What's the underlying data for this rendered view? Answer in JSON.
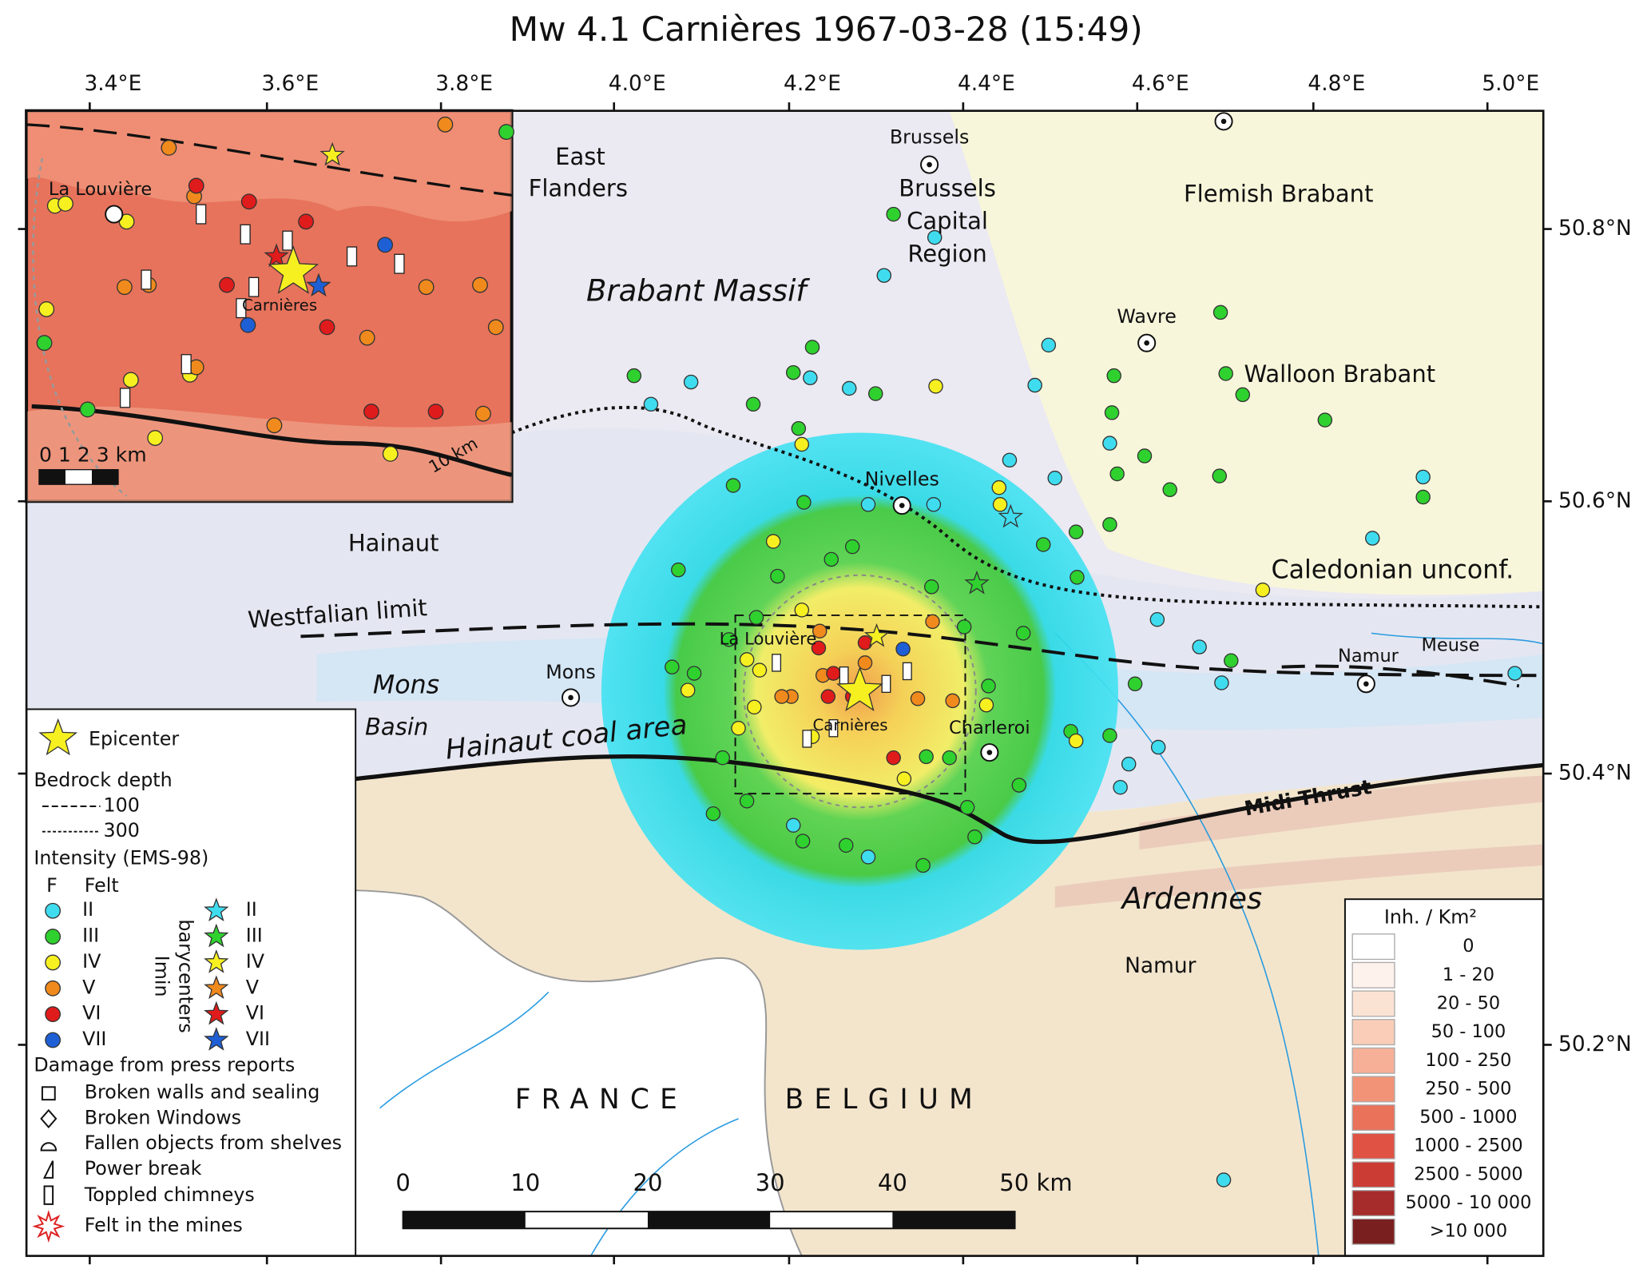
{
  "title": "Mw 4.1 Carnières 1967-03-28 (15:49)",
  "axes": {
    "longitude": [
      "3.4°E",
      "3.6°E",
      "3.8°E",
      "4.0°E",
      "4.2°E",
      "4.4°E",
      "4.6°E",
      "4.8°E",
      "5.0°E"
    ],
    "latitude": [
      "50.8°N",
      "50.6°N",
      "50.4°N",
      "50.2°N"
    ]
  },
  "places": {
    "brussels": "Brussels",
    "brussels_region": [
      "Brussels",
      "Capital",
      "Region"
    ],
    "east_flanders": [
      "East",
      "Flanders"
    ],
    "flemish_brabant": "Flemish Brabant",
    "wavre": "Wavre",
    "walloon_brabant": "Walloon Brabant",
    "nivelles": "Nivelles",
    "hainaut": "Hainaut",
    "mons": "Mons",
    "la_louviere": "La Louvière",
    "carnieres": "Carnières",
    "charleroi": "Charleroi",
    "namur_city": "Namur",
    "namur_province": "Namur",
    "meuse": "Meuse",
    "france": "FRANCE",
    "belgium": "BELGIUM"
  },
  "geology": {
    "brabant_massif": "Brabant Massif",
    "caledonian": "Caledonian unconf.",
    "westfalian": "Westfalian limit",
    "mons_basin": [
      "Mons",
      "Basin"
    ],
    "coal_area": "Hainaut coal area",
    "midi_thrust": "Midi Thrust",
    "ardennes": "Ardennes"
  },
  "inset": {
    "la_louviere": "La Louvière",
    "carnieres": "Carnières",
    "scale": "0  1  2  3 km",
    "ring": "10 km"
  },
  "scale_bar": [
    "0",
    "10",
    "20",
    "30",
    "40",
    "50 km"
  ],
  "legend": {
    "epicenter": "Epicenter",
    "bedrock_title": "Bedrock depth",
    "bedrock": [
      "100",
      "300"
    ],
    "intensity_title": "Intensity (EMS-98)",
    "felt": {
      "symbol": "F",
      "label": "Felt"
    },
    "intensity": [
      {
        "label": "II",
        "color": "#3fdcef"
      },
      {
        "label": "III",
        "color": "#2fd12f"
      },
      {
        "label": "IV",
        "color": "#f7f020"
      },
      {
        "label": "V",
        "color": "#f08a1c"
      },
      {
        "label": "VI",
        "color": "#e01b1b"
      },
      {
        "label": "VII",
        "color": "#1f5fd6"
      }
    ],
    "barycenters_title": [
      "Imin",
      "barycenters"
    ],
    "barycenters": [
      "II",
      "III",
      "IV",
      "V",
      "VI",
      "VII"
    ],
    "damage_title": "Damage from press reports",
    "damage": [
      "Broken walls and sealing",
      "Broken Windows",
      "Fallen objects from shelves",
      "Power break",
      "Toppled chimneys"
    ],
    "mines": "Felt in the mines"
  },
  "density_legend": {
    "title": "Inh. / Km²",
    "classes": [
      {
        "label": "0",
        "color": "#ffffff"
      },
      {
        "label": "1 - 20",
        "color": "#fdf2ec"
      },
      {
        "label": "20 - 50",
        "color": "#fbe3d3"
      },
      {
        "label": "50 - 100",
        "color": "#f9cdb7"
      },
      {
        "label": "100 - 250",
        "color": "#f6b097"
      },
      {
        "label": "250 - 500",
        "color": "#f29377"
      },
      {
        "label": "500 - 1000",
        "color": "#ea715a"
      },
      {
        "label": "1000 - 2500",
        "color": "#df5244"
      },
      {
        "label": "2500 - 5000",
        "color": "#cb3c34"
      },
      {
        "label": "5000 - 10 000",
        "color": "#a62b2b"
      },
      {
        "label": ">10 000",
        "color": "#7a1f1f"
      }
    ]
  }
}
